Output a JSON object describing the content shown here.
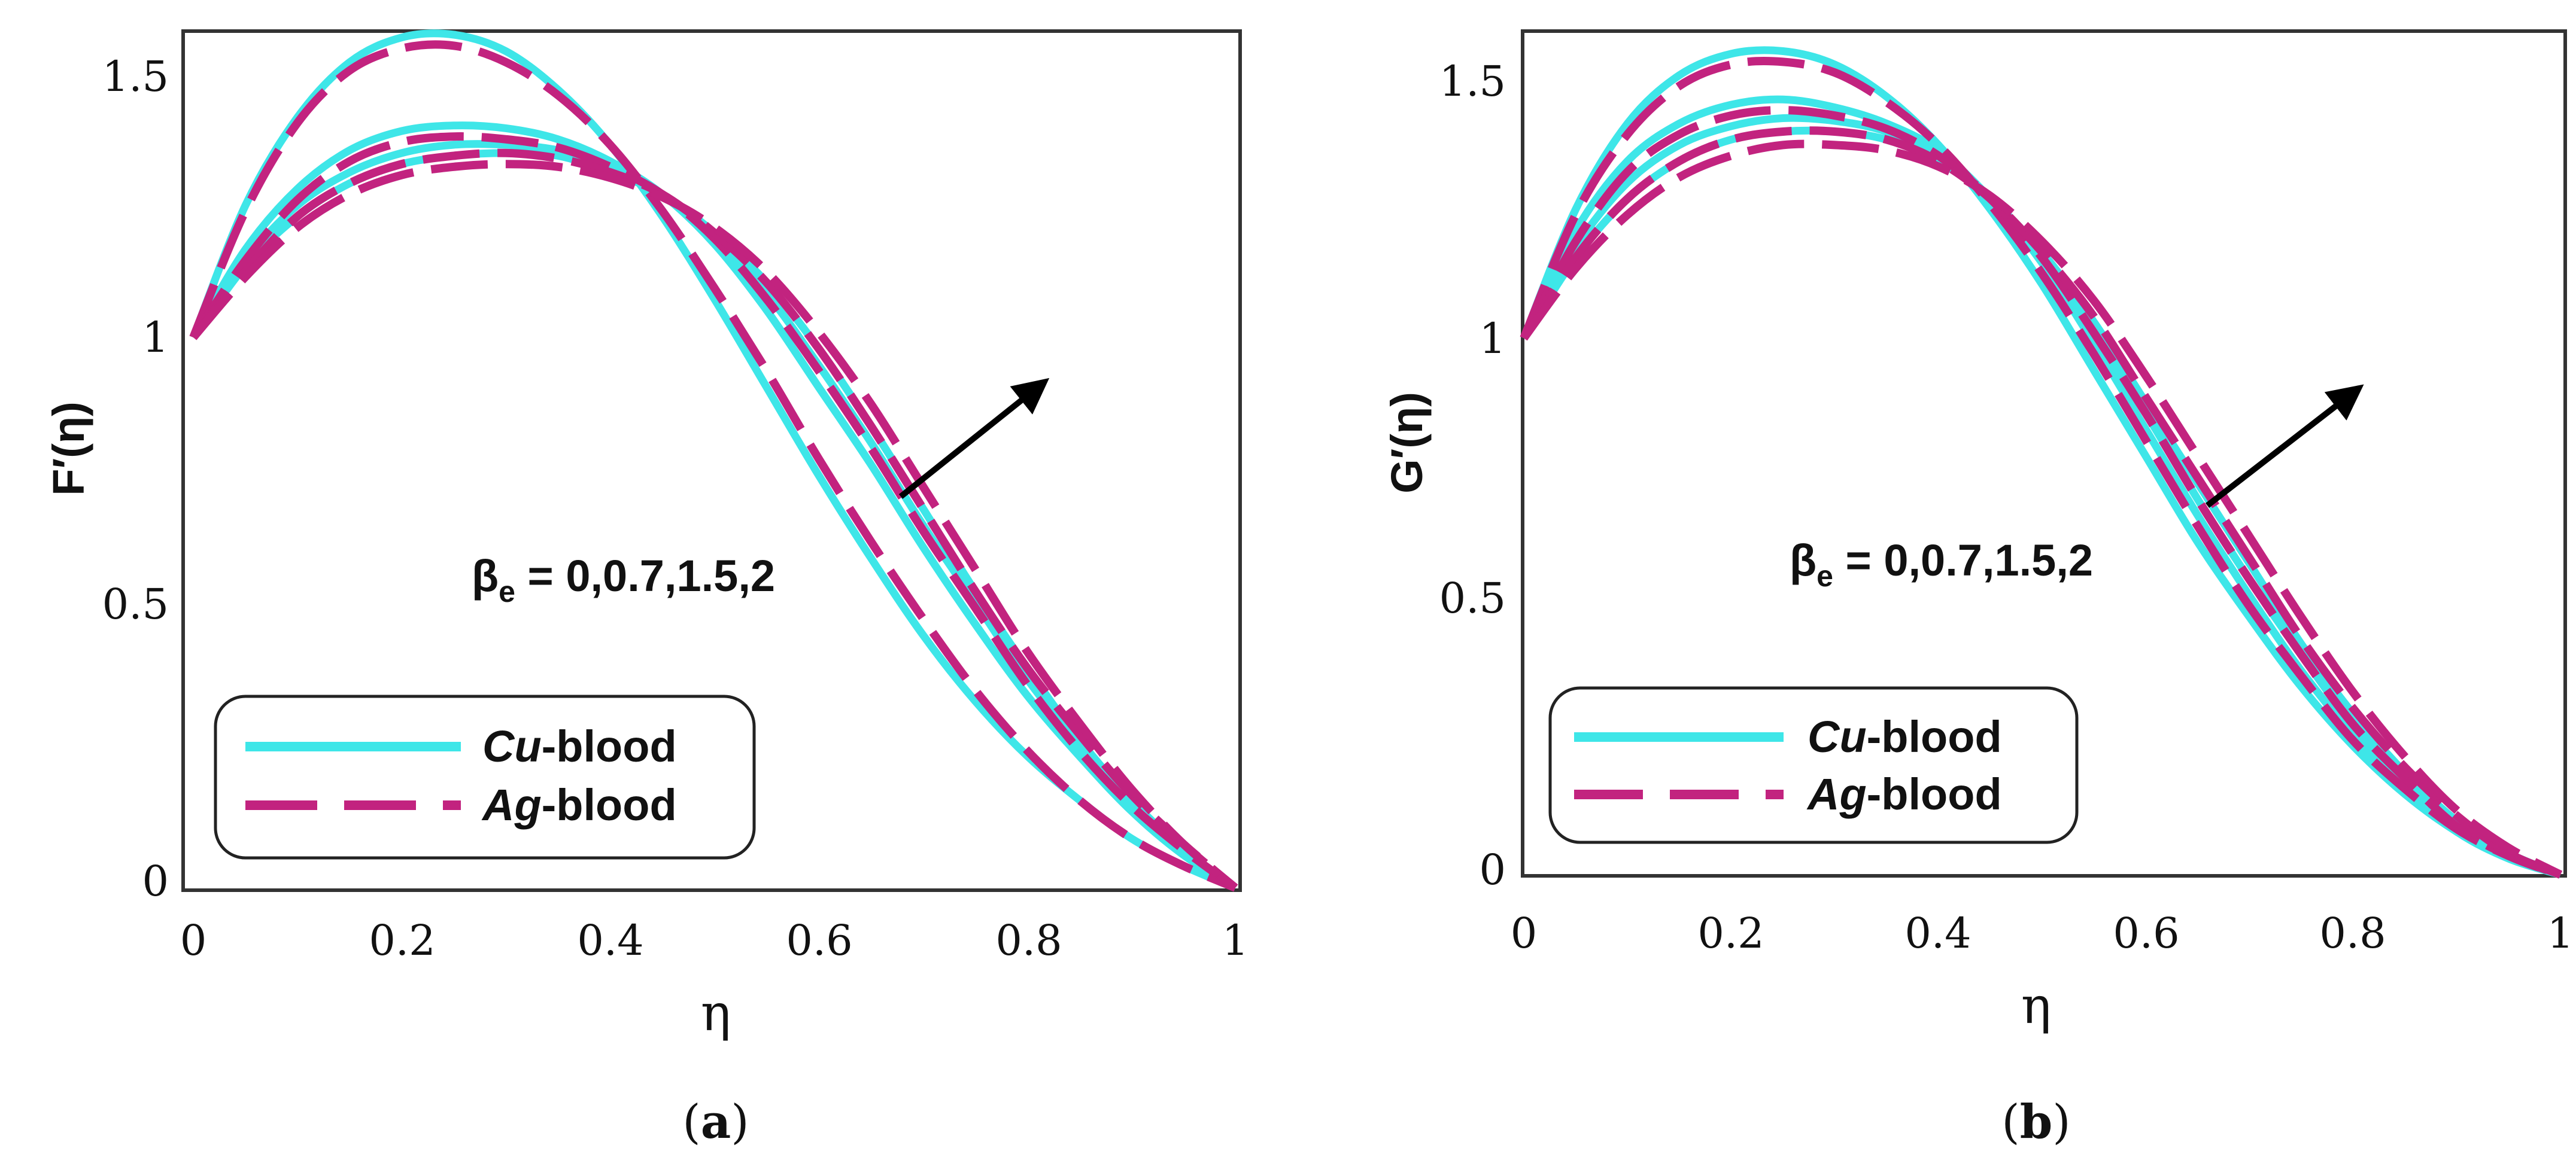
{
  "chart_data": [
    {
      "panel_label": "(a)",
      "type": "line",
      "xlabel": "η",
      "ylabel": "F′(η)",
      "xlim": [
        0,
        1
      ],
      "ylim": [
        0,
        1.55
      ],
      "xticks": [
        "0",
        "0.2",
        "0.4",
        "0.6",
        "0.8",
        "1"
      ],
      "yticks": [
        "0",
        "0.5",
        "1",
        "1.5"
      ],
      "annotation": {
        "beta": "β",
        "sub": "e",
        "values": " = 0,0.7,1.5,2"
      },
      "legend": {
        "placement": "lower-left",
        "entries": [
          {
            "prefix": "Cu",
            "suffix": "-blood",
            "color": "#3ee6e8",
            "style": "solid"
          },
          {
            "prefix": "Ag",
            "suffix": "-blood",
            "color": "#c2237f",
            "style": "dashed"
          }
        ]
      },
      "x": [
        0,
        0.05,
        0.1,
        0.15,
        0.2,
        0.25,
        0.3,
        0.35,
        0.4,
        0.45,
        0.5,
        0.55,
        0.6,
        0.65,
        0.7,
        0.75,
        0.8,
        0.85,
        0.9,
        0.95,
        1
      ],
      "series": [
        {
          "name": "Cu-blood β_e=0",
          "style": "solid",
          "values": [
            1,
            1.24,
            1.4,
            1.5,
            1.545,
            1.55,
            1.52,
            1.45,
            1.35,
            1.22,
            1.07,
            0.91,
            0.75,
            0.6,
            0.46,
            0.34,
            0.24,
            0.16,
            0.09,
            0.04,
            0
          ]
        },
        {
          "name": "Cu-blood β_e=0.7",
          "style": "solid",
          "values": [
            1,
            1.16,
            1.27,
            1.34,
            1.375,
            1.385,
            1.38,
            1.36,
            1.32,
            1.26,
            1.17,
            1.05,
            0.91,
            0.77,
            0.62,
            0.48,
            0.35,
            0.24,
            0.14,
            0.06,
            0
          ]
        },
        {
          "name": "Cu-blood β_e=1.5",
          "style": "solid",
          "values": [
            1,
            1.14,
            1.24,
            1.3,
            1.335,
            1.35,
            1.35,
            1.34,
            1.31,
            1.26,
            1.18,
            1.08,
            0.95,
            0.81,
            0.66,
            0.52,
            0.38,
            0.26,
            0.15,
            0.07,
            0
          ]
        },
        {
          "name": "Cu-blood β_e=2",
          "style": "solid",
          "values": [
            1,
            1.13,
            1.22,
            1.28,
            1.315,
            1.33,
            1.335,
            1.33,
            1.3,
            1.26,
            1.19,
            1.1,
            0.98,
            0.84,
            0.69,
            0.54,
            0.4,
            0.27,
            0.16,
            0.07,
            0
          ]
        },
        {
          "name": "Ag-blood β_e=0",
          "style": "dashed",
          "values": [
            1,
            1.23,
            1.39,
            1.485,
            1.525,
            1.53,
            1.5,
            1.44,
            1.35,
            1.23,
            1.09,
            0.94,
            0.78,
            0.63,
            0.49,
            0.36,
            0.25,
            0.16,
            0.09,
            0.04,
            0
          ]
        },
        {
          "name": "Ag-blood β_e=0.7",
          "style": "dashed",
          "values": [
            1,
            1.14,
            1.25,
            1.32,
            1.355,
            1.365,
            1.36,
            1.345,
            1.31,
            1.26,
            1.18,
            1.07,
            0.94,
            0.8,
            0.65,
            0.51,
            0.37,
            0.25,
            0.15,
            0.07,
            0
          ]
        },
        {
          "name": "Ag-blood β_e=1.5",
          "style": "dashed",
          "values": [
            1,
            1.12,
            1.22,
            1.28,
            1.315,
            1.33,
            1.335,
            1.325,
            1.3,
            1.26,
            1.19,
            1.1,
            0.98,
            0.84,
            0.69,
            0.54,
            0.4,
            0.28,
            0.17,
            0.08,
            0
          ]
        },
        {
          "name": "Ag-blood β_e=2",
          "style": "dashed",
          "values": [
            1,
            1.11,
            1.2,
            1.26,
            1.295,
            1.31,
            1.315,
            1.31,
            1.29,
            1.255,
            1.2,
            1.12,
            1.01,
            0.88,
            0.73,
            0.58,
            0.43,
            0.3,
            0.18,
            0.08,
            0
          ]
        }
      ]
    },
    {
      "panel_label": "(b)",
      "type": "line",
      "xlabel": "η",
      "ylabel": "G′(η)",
      "xlim": [
        0,
        1
      ],
      "ylim": [
        0,
        1.55
      ],
      "xticks": [
        "0",
        "0.2",
        "0.4",
        "0.6",
        "0.8",
        "1"
      ],
      "yticks": [
        "0",
        "0.5",
        "1",
        "1.5"
      ],
      "annotation": {
        "beta": "β",
        "sub": "e",
        "values": " = 0,0.7,1.5,2"
      },
      "legend": {
        "placement": "lower-left",
        "entries": [
          {
            "prefix": "Cu",
            "suffix": "-blood",
            "color": "#3ee6e8",
            "style": "solid"
          },
          {
            "prefix": "Ag",
            "suffix": "-blood",
            "color": "#c2237f",
            "style": "dashed"
          }
        ]
      },
      "x": [
        0,
        0.05,
        0.1,
        0.15,
        0.2,
        0.25,
        0.3,
        0.35,
        0.4,
        0.45,
        0.5,
        0.55,
        0.6,
        0.65,
        0.7,
        0.75,
        0.8,
        0.85,
        0.9,
        0.95,
        1
      ],
      "series": [
        {
          "name": "Cu-blood β_e=0",
          "style": "solid",
          "values": [
            1,
            1.24,
            1.4,
            1.49,
            1.53,
            1.535,
            1.51,
            1.45,
            1.36,
            1.24,
            1.1,
            0.94,
            0.78,
            0.62,
            0.48,
            0.35,
            0.24,
            0.15,
            0.08,
            0.03,
            0
          ]
        },
        {
          "name": "Cu-blood β_e=0.7",
          "style": "solid",
          "values": [
            1,
            1.2,
            1.33,
            1.4,
            1.435,
            1.445,
            1.43,
            1.4,
            1.35,
            1.26,
            1.14,
            0.99,
            0.83,
            0.67,
            0.52,
            0.38,
            0.26,
            0.16,
            0.08,
            0.03,
            0
          ]
        },
        {
          "name": "Cu-blood β_e=1.5",
          "style": "solid",
          "values": [
            1,
            1.17,
            1.29,
            1.36,
            1.395,
            1.41,
            1.405,
            1.385,
            1.34,
            1.26,
            1.15,
            1.01,
            0.86,
            0.7,
            0.55,
            0.41,
            0.28,
            0.18,
            0.09,
            0.035,
            0
          ]
        },
        {
          "name": "Cu-blood β_e=2",
          "style": "solid",
          "values": [
            1,
            1.15,
            1.26,
            1.33,
            1.37,
            1.385,
            1.385,
            1.37,
            1.33,
            1.26,
            1.16,
            1.03,
            0.88,
            0.73,
            0.58,
            0.43,
            0.3,
            0.19,
            0.1,
            0.04,
            0
          ]
        },
        {
          "name": "Ag-blood β_e=0",
          "style": "dashed",
          "values": [
            1,
            1.23,
            1.38,
            1.47,
            1.51,
            1.515,
            1.495,
            1.44,
            1.36,
            1.25,
            1.12,
            0.97,
            0.81,
            0.65,
            0.5,
            0.37,
            0.25,
            0.16,
            0.085,
            0.035,
            0
          ]
        },
        {
          "name": "Ag-blood β_e=0.7",
          "style": "dashed",
          "values": [
            1,
            1.18,
            1.31,
            1.38,
            1.415,
            1.425,
            1.415,
            1.39,
            1.34,
            1.26,
            1.15,
            1.01,
            0.86,
            0.7,
            0.55,
            0.41,
            0.28,
            0.18,
            0.09,
            0.035,
            0
          ]
        },
        {
          "name": "Ag-blood β_e=1.5",
          "style": "dashed",
          "values": [
            1,
            1.15,
            1.26,
            1.33,
            1.37,
            1.385,
            1.385,
            1.37,
            1.33,
            1.26,
            1.16,
            1.04,
            0.89,
            0.74,
            0.59,
            0.44,
            0.31,
            0.2,
            0.11,
            0.04,
            0
          ]
        },
        {
          "name": "Ag-blood β_e=2",
          "style": "dashed",
          "values": [
            1,
            1.13,
            1.23,
            1.3,
            1.34,
            1.36,
            1.36,
            1.35,
            1.32,
            1.265,
            1.18,
            1.07,
            0.93,
            0.78,
            0.63,
            0.48,
            0.34,
            0.22,
            0.12,
            0.05,
            0
          ]
        }
      ]
    }
  ]
}
